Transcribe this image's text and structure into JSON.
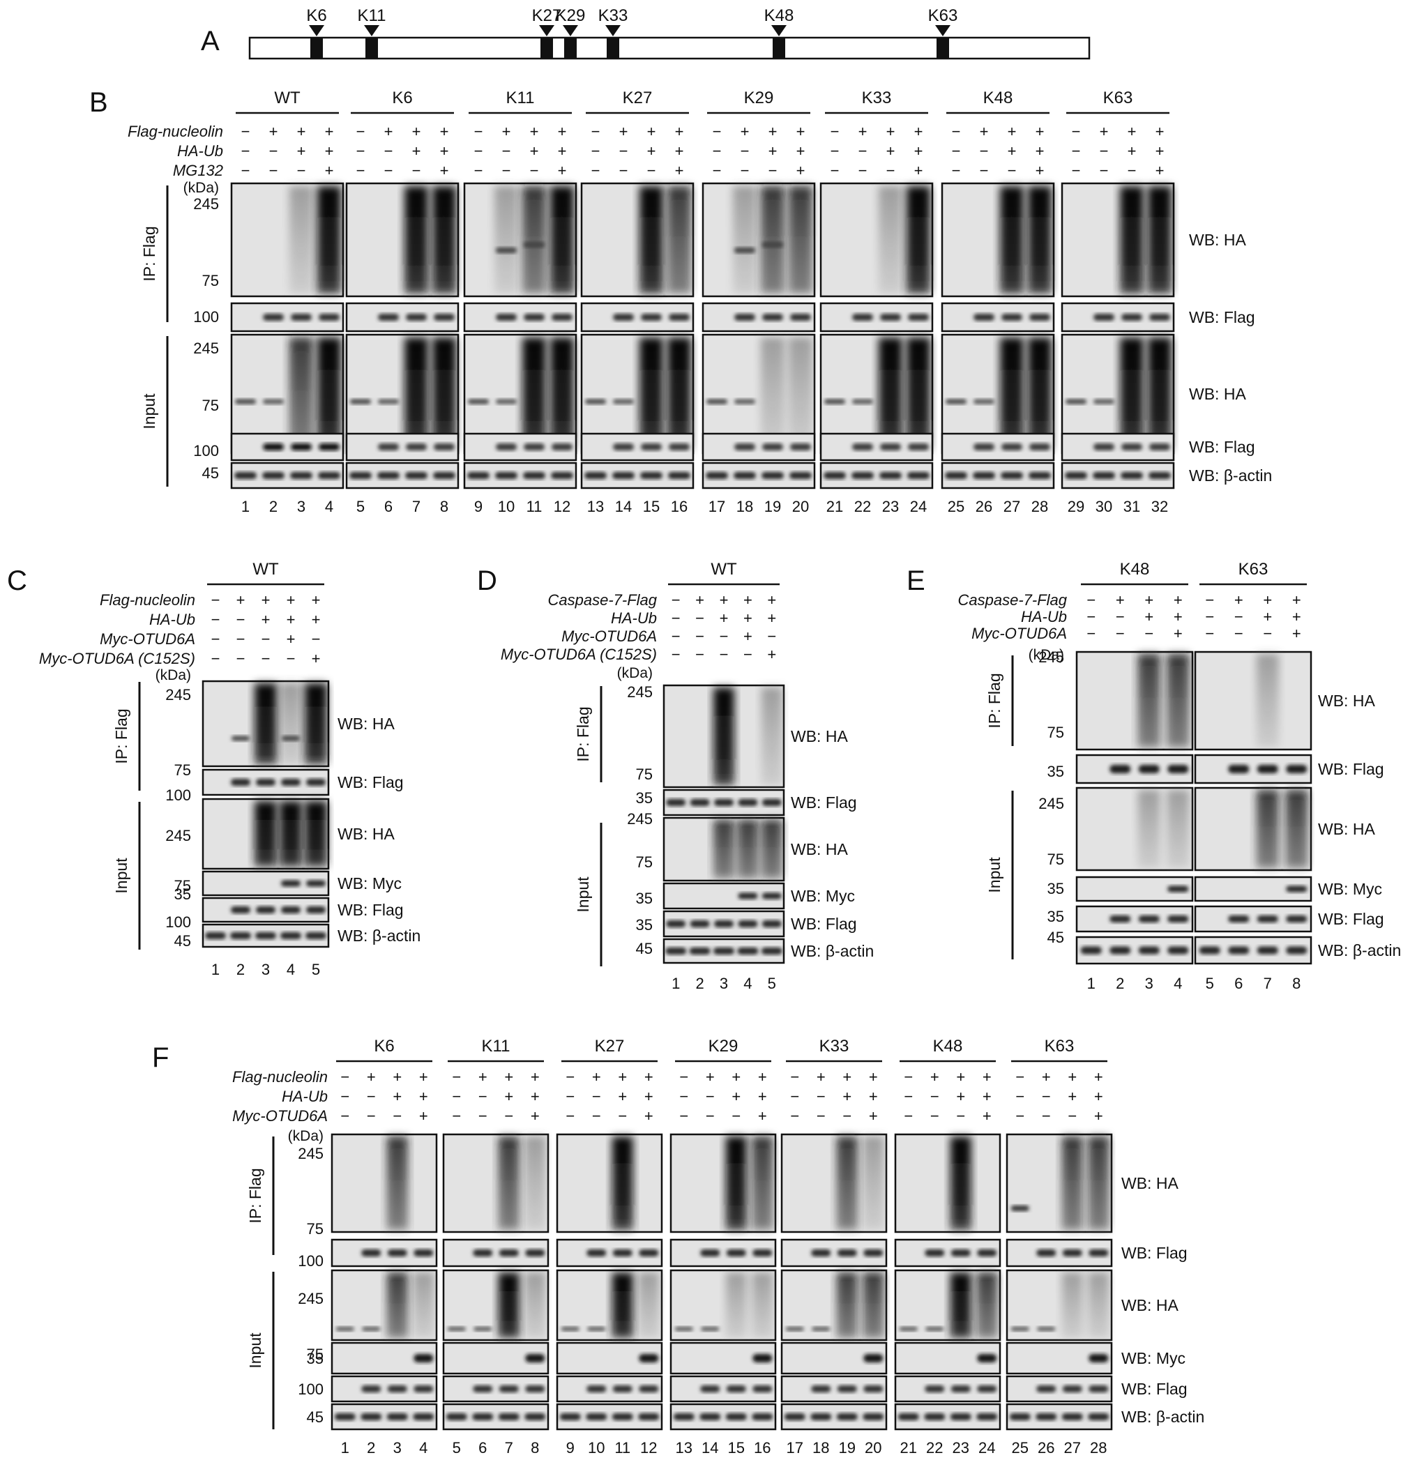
{
  "panel_a": {
    "letter": "A",
    "sites": [
      "K6",
      "K11",
      "K27",
      "K29",
      "K33",
      "K48",
      "K63"
    ]
  },
  "panel_b": {
    "letter": "B",
    "groups": [
      "WT",
      "K6",
      "K11",
      "K27",
      "K29",
      "K33",
      "K48",
      "K63"
    ],
    "rows": [
      "Flag-nucleolin",
      "HA-Ub",
      "MG132"
    ],
    "signs": [
      [
        "−",
        "+",
        "+",
        "+"
      ],
      [
        "−",
        "−",
        "+",
        "+"
      ],
      [
        "−",
        "−",
        "−",
        "+"
      ]
    ],
    "kda_label": "(kDa)",
    "sections": [
      "IP: Flag",
      "Input"
    ],
    "markers": [
      "245",
      "75",
      "100",
      "245",
      "75",
      "100",
      "45"
    ],
    "blot_labels": [
      "WB: HA",
      "WB: Flag",
      "WB: HA",
      "WB: Flag",
      "WB: β-actin"
    ],
    "lanes": [
      "1",
      "2",
      "3",
      "4",
      "5",
      "6",
      "7",
      "8",
      "9",
      "10",
      "11",
      "12",
      "13",
      "14",
      "15",
      "16",
      "17",
      "18",
      "19",
      "20",
      "21",
      "22",
      "23",
      "24",
      "25",
      "26",
      "27",
      "28",
      "29",
      "30",
      "31",
      "32"
    ]
  },
  "panel_c": {
    "letter": "C",
    "group": "WT",
    "rows": [
      "Flag-nucleolin",
      "HA-Ub",
      "Myc-OTUD6A",
      "Myc-OTUD6A (C152S)"
    ],
    "signs": [
      [
        "−",
        "+",
        "+",
        "+",
        "+"
      ],
      [
        "−",
        "−",
        "+",
        "+",
        "+"
      ],
      [
        "−",
        "−",
        "−",
        "+",
        "−"
      ],
      [
        "−",
        "−",
        "−",
        "−",
        "+"
      ]
    ],
    "kda_label": "(kDa)",
    "sections": [
      "IP: Flag",
      "Input"
    ],
    "markers": [
      "245",
      "75",
      "100",
      "245",
      "75",
      "35",
      "100",
      "45"
    ],
    "blot_labels": [
      "WB: HA",
      "WB: Flag",
      "WB: HA",
      "WB: Myc",
      "WB: Flag",
      "WB: β-actin"
    ],
    "lanes": [
      "1",
      "2",
      "3",
      "4",
      "5"
    ]
  },
  "panel_d": {
    "letter": "D",
    "group": "WT",
    "rows": [
      "Caspase-7-Flag",
      "HA-Ub",
      "Myc-OTUD6A",
      "Myc-OTUD6A (C152S)"
    ],
    "signs": [
      [
        "−",
        "+",
        "+",
        "+",
        "+"
      ],
      [
        "−",
        "−",
        "+",
        "+",
        "+"
      ],
      [
        "−",
        "−",
        "−",
        "+",
        "−"
      ],
      [
        "−",
        "−",
        "−",
        "−",
        "+"
      ]
    ],
    "kda_label": "(kDa)",
    "sections": [
      "IP: Flag",
      "Input"
    ],
    "markers": [
      "245",
      "75",
      "35",
      "245",
      "75",
      "35",
      "35",
      "45"
    ],
    "blot_labels": [
      "WB: HA",
      "WB: Flag",
      "WB: HA",
      "WB: Myc",
      "WB: Flag",
      "WB: β-actin"
    ],
    "lanes": [
      "1",
      "2",
      "3",
      "4",
      "5"
    ]
  },
  "panel_e": {
    "letter": "E",
    "groups": [
      "K48",
      "K63"
    ],
    "rows": [
      "Caspase-7-Flag",
      "HA-Ub",
      "Myc-OTUD6A"
    ],
    "signs": [
      [
        "−",
        "+",
        "+",
        "+"
      ],
      [
        "−",
        "−",
        "+",
        "+"
      ],
      [
        "−",
        "−",
        "−",
        "+"
      ]
    ],
    "kda_label": "(kDa)",
    "sections": [
      "IP: Flag",
      "Input"
    ],
    "markers": [
      "245",
      "75",
      "35",
      "245",
      "75",
      "35",
      "35",
      "45"
    ],
    "blot_labels": [
      "WB: HA",
      "WB: Flag",
      "WB: HA",
      "WB: Myc",
      "WB: Flag",
      "WB: β-actin"
    ],
    "lanes": [
      "1",
      "2",
      "3",
      "4",
      "5",
      "6",
      "7",
      "8"
    ]
  },
  "panel_f": {
    "letter": "F",
    "groups": [
      "K6",
      "K11",
      "K27",
      "K29",
      "K33",
      "K48",
      "K63"
    ],
    "rows": [
      "Flag-nucleolin",
      "HA-Ub",
      "Myc-OTUD6A"
    ],
    "signs": [
      [
        "−",
        "+",
        "+",
        "+"
      ],
      [
        "−",
        "−",
        "+",
        "+"
      ],
      [
        "−",
        "−",
        "−",
        "+"
      ]
    ],
    "kda_label": "(kDa)",
    "sections": [
      "IP: Flag",
      "Input"
    ],
    "markers": [
      "245",
      "75",
      "100",
      "245",
      "75",
      "35",
      "100",
      "45"
    ],
    "blot_labels": [
      "WB: HA",
      "WB: Flag",
      "WB: HA",
      "WB: Myc",
      "WB: Flag",
      "WB: β-actin"
    ],
    "lanes": [
      "1",
      "2",
      "3",
      "4",
      "5",
      "6",
      "7",
      "8",
      "9",
      "10",
      "11",
      "12",
      "13",
      "14",
      "15",
      "16",
      "17",
      "18",
      "19",
      "20",
      "21",
      "22",
      "23",
      "24",
      "25",
      "26",
      "27",
      "28"
    ]
  }
}
